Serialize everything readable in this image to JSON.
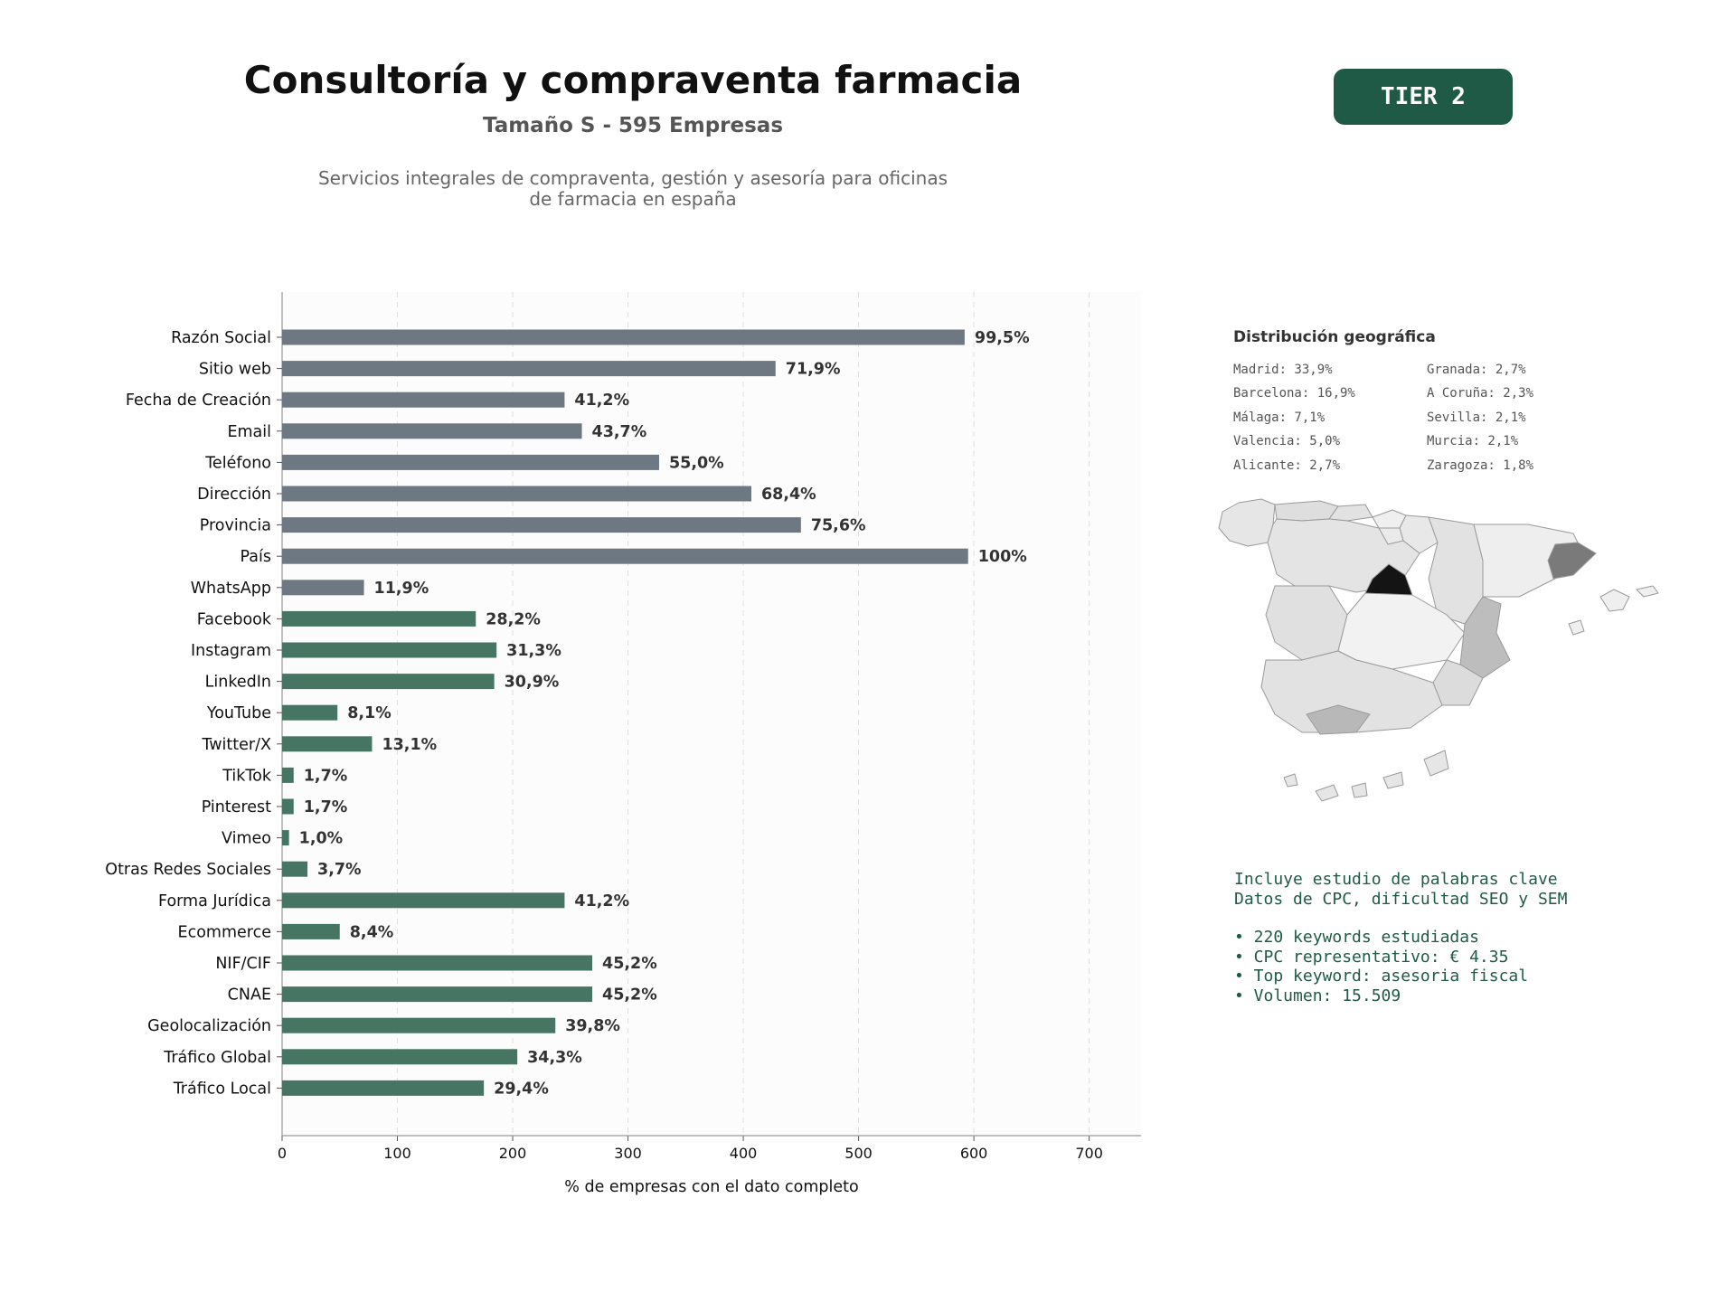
{
  "header": {
    "title": "Consultoría y compraventa farmacia",
    "subtitle": "Tamaño S - 595 Empresas",
    "description_line1": "Servicios integrales de compraventa, gestión y asesoría para oficinas",
    "description_line2": "de farmacia en españa",
    "tier": "TIER 2"
  },
  "chart_data": {
    "type": "bar",
    "orientation": "horizontal",
    "xlabel": "% de empresas con el dato completo",
    "xlim": [
      0,
      745
    ],
    "xticks": [
      0,
      100,
      200,
      300,
      400,
      500,
      600,
      700
    ],
    "grid": "vertical dashed",
    "categories": [
      "Razón Social",
      "Sitio web",
      "Fecha de Creación",
      "Email",
      "Teléfono",
      "Dirección",
      "Provincia",
      "País",
      "WhatsApp",
      "Facebook",
      "Instagram",
      "LinkedIn",
      "YouTube",
      "Twitter/X",
      "TikTok",
      "Pinterest",
      "Vimeo",
      "Otras Redes Sociales",
      "Forma Jurídica",
      "Ecommerce",
      "NIF/CIF",
      "CNAE",
      "Geolocalización",
      "Tráfico Global",
      "Tráfico Local"
    ],
    "values": [
      592,
      428,
      245,
      260,
      327,
      407,
      450,
      595,
      71,
      168,
      186,
      184,
      48,
      78,
      10,
      10,
      6,
      22,
      245,
      50,
      269,
      269,
      237,
      204,
      175
    ],
    "labels": [
      "99,5%",
      "71,9%",
      "41,2%",
      "43,7%",
      "55,0%",
      "68,4%",
      "75,6%",
      "100%",
      "11,9%",
      "28,2%",
      "31,3%",
      "30,9%",
      "8,1%",
      "13,1%",
      "1,7%",
      "1,7%",
      "1,0%",
      "3,7%",
      "41,2%",
      "8,4%",
      "45,2%",
      "45,2%",
      "39,8%",
      "34,3%",
      "29,4%"
    ],
    "groups": [
      "basic",
      "basic",
      "basic",
      "basic",
      "basic",
      "basic",
      "basic",
      "basic",
      "basic",
      "extra",
      "extra",
      "extra",
      "extra",
      "extra",
      "extra",
      "extra",
      "extra",
      "extra",
      "extra",
      "extra",
      "extra",
      "extra",
      "extra",
      "extra",
      "extra"
    ],
    "colors": {
      "basic": "#6e7882",
      "extra": "#477563",
      "label": "#333333"
    }
  },
  "geo": {
    "title": "Distribución geográfica",
    "col1": [
      "Madrid: 33,9%",
      "Barcelona: 16,9%",
      "Málaga: 7,1%",
      "Valencia: 5,0%",
      "Alicante: 2,7%"
    ],
    "col2": [
      "Granada: 2,7%",
      "A Coruña: 2,3%",
      "Sevilla: 2,1%",
      "Murcia: 2,1%",
      "Zaragoza: 1,8%"
    ]
  },
  "keywords": {
    "line1": "Incluye estudio de palabras clave",
    "line2": "Datos de CPC, dificultad SEO y SEM",
    "bullets": [
      "• 220 keywords estudiadas",
      "• CPC representativo: € 4.35",
      "• Top keyword: asesoria fiscal",
      "• Volumen: 15.509"
    ]
  }
}
